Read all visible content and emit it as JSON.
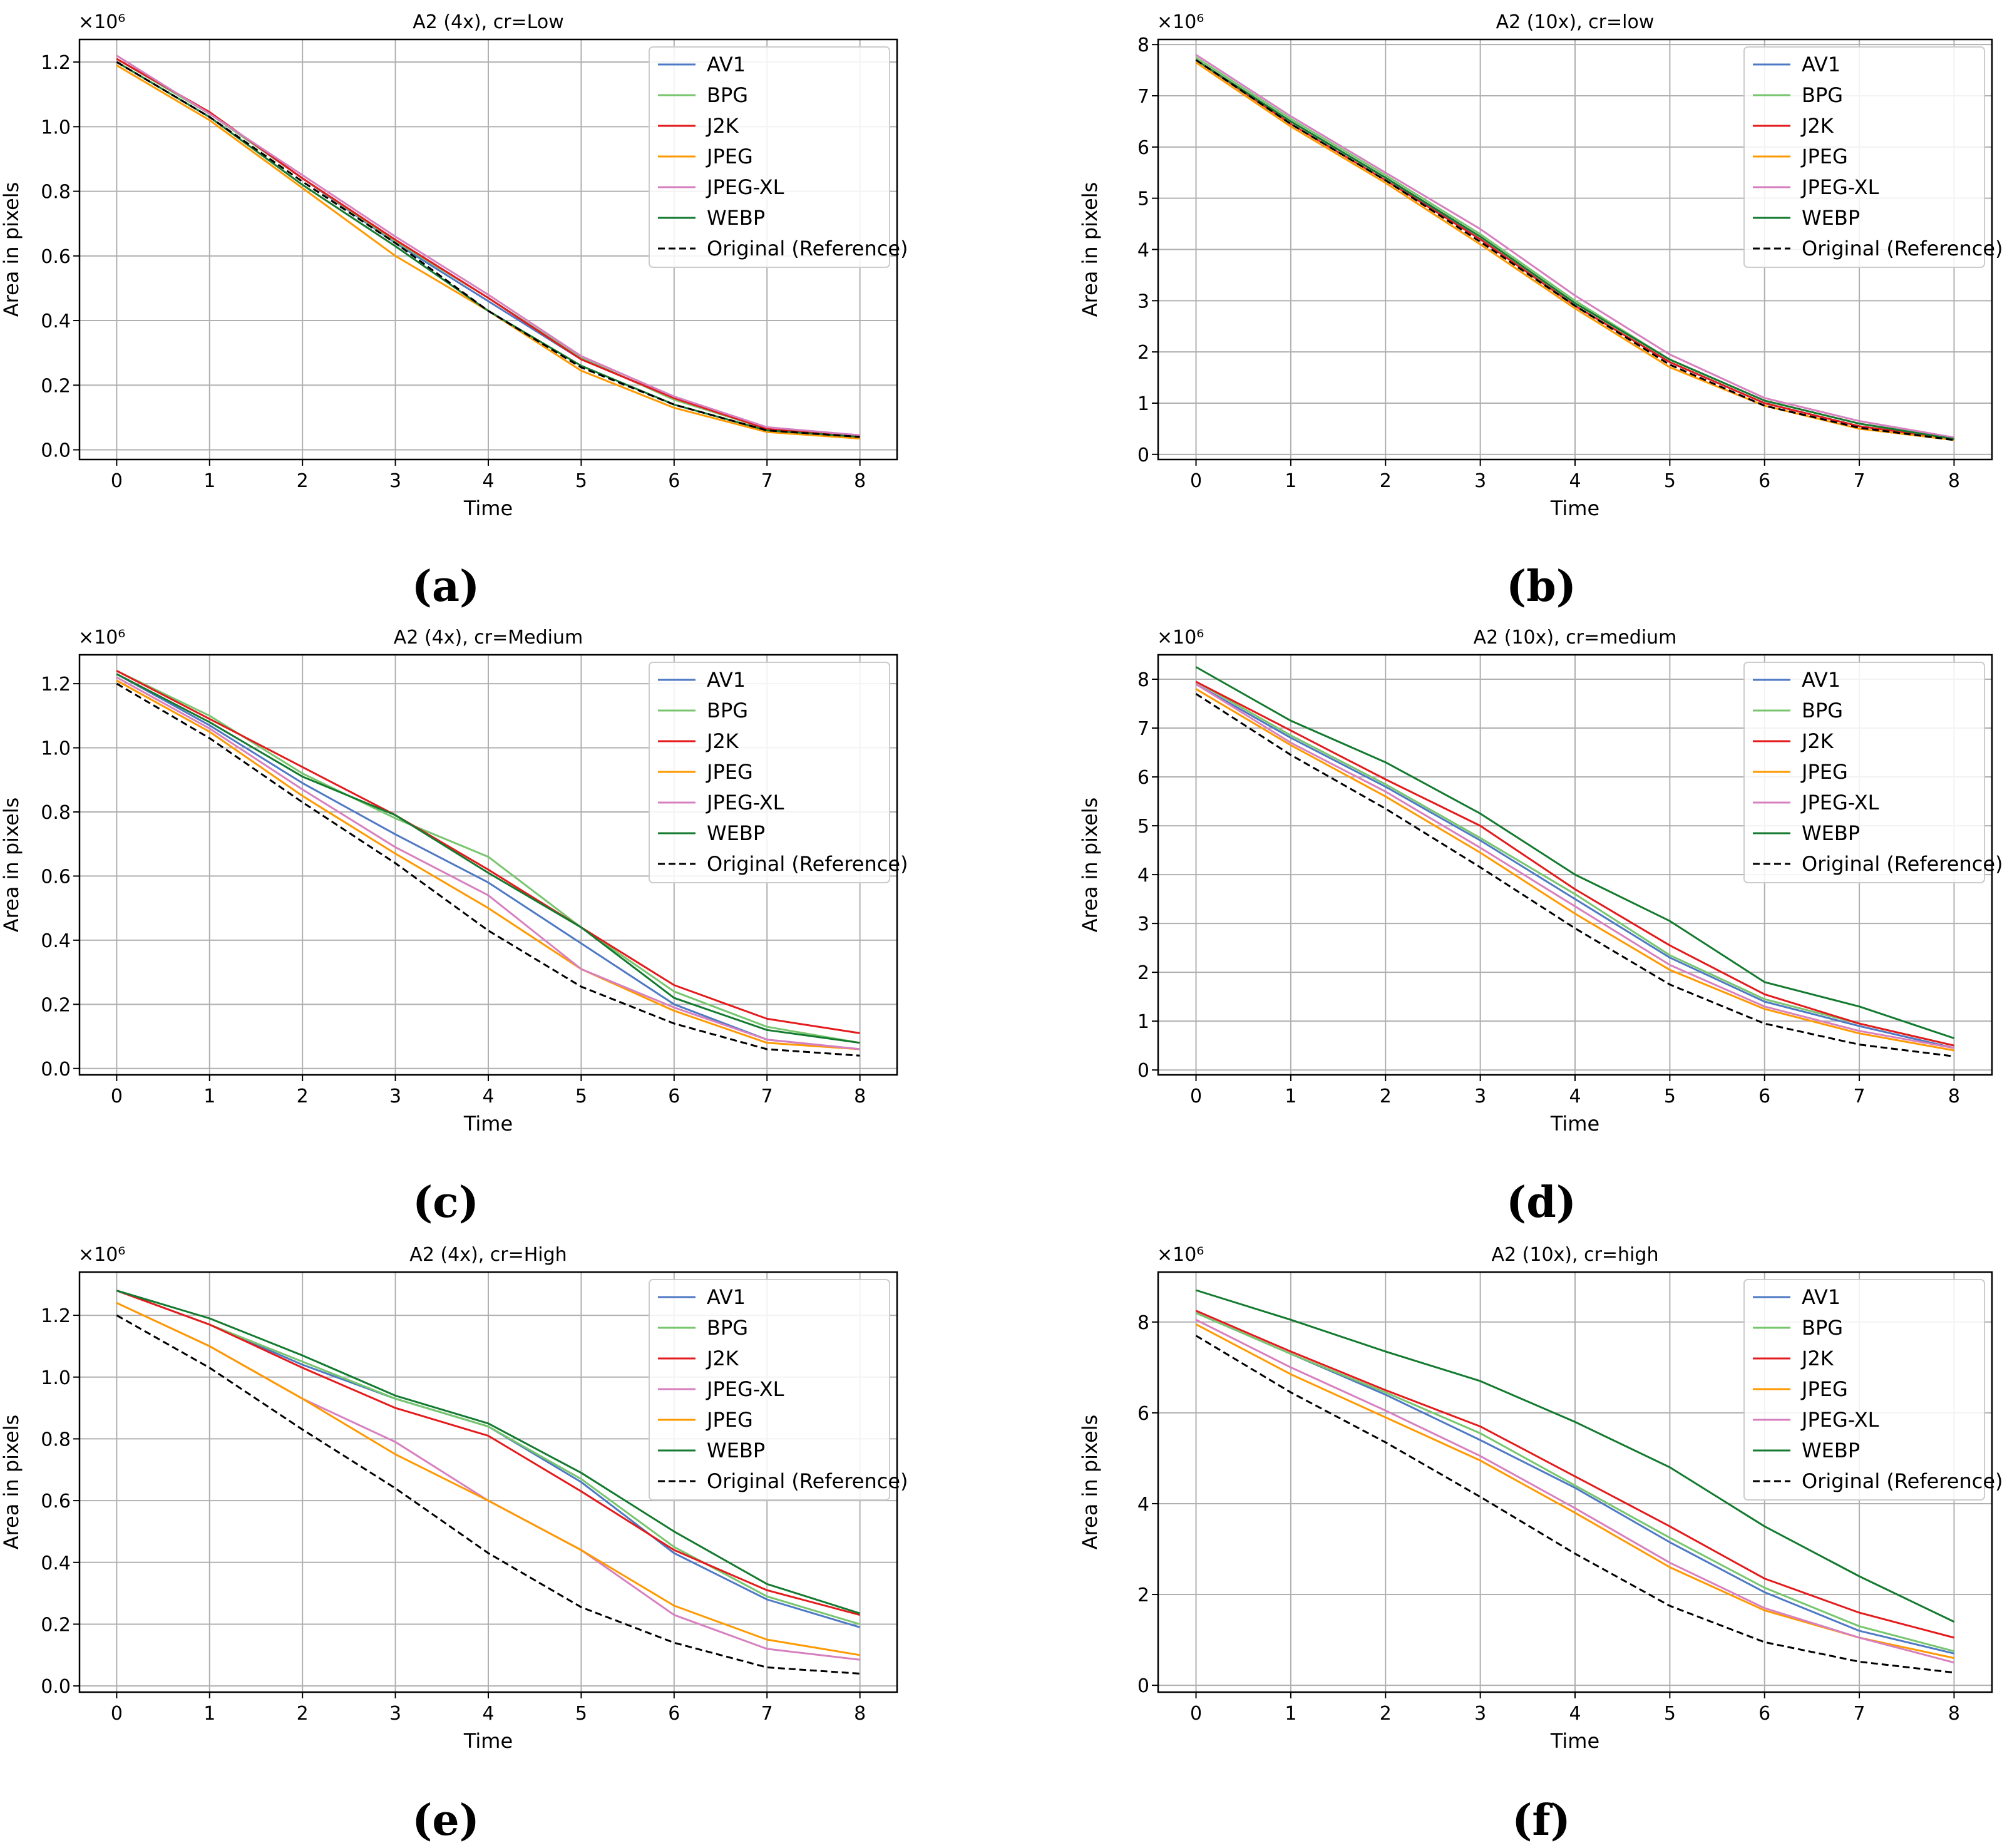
{
  "colors": {
    "AV1": "#4e79c4",
    "BPG": "#77c66e",
    "J2K": "#e41a1c",
    "JPEG": "#ff9900",
    "JPEG-XL": "#d77fbf",
    "WEBP": "#137a2f",
    "Original (Reference)": "#000000"
  },
  "chart_data": [
    {
      "type": "line",
      "caption": "(a)",
      "title": "A2 (4x), cr=Low",
      "xlabel": "Time",
      "ylabel": "Area in pixels",
      "multiplier": "×10⁶",
      "x": [
        0,
        1,
        2,
        3,
        4,
        5,
        6,
        7,
        8
      ],
      "xlim": [
        -0.4,
        8.4
      ],
      "ylim": [
        -0.03,
        1.27
      ],
      "yticks": [
        0.0,
        0.2,
        0.4,
        0.6,
        0.8,
        1.0,
        1.2
      ],
      "ytick_labels": [
        "0.0",
        "0.2",
        "0.4",
        "0.6",
        "0.8",
        "1.0",
        "1.2"
      ],
      "legend": [
        "AV1",
        "BPG",
        "J2K",
        "JPEG",
        "JPEG-XL",
        "WEBP",
        "Original (Reference)"
      ],
      "series": [
        {
          "name": "AV1",
          "values": [
            1.21,
            1.04,
            0.84,
            0.64,
            0.46,
            0.28,
            0.16,
            0.065,
            0.045
          ]
        },
        {
          "name": "BPG",
          "values": [
            1.21,
            1.04,
            0.84,
            0.645,
            0.47,
            0.285,
            0.155,
            0.065,
            0.045
          ]
        },
        {
          "name": "J2K",
          "values": [
            1.21,
            1.045,
            0.84,
            0.65,
            0.47,
            0.28,
            0.16,
            0.065,
            0.045
          ]
        },
        {
          "name": "JPEG",
          "values": [
            1.19,
            1.02,
            0.81,
            0.6,
            0.43,
            0.245,
            0.13,
            0.055,
            0.035
          ]
        },
        {
          "name": "JPEG-XL",
          "values": [
            1.22,
            1.04,
            0.85,
            0.66,
            0.48,
            0.29,
            0.165,
            0.07,
            0.045
          ]
        },
        {
          "name": "WEBP",
          "values": [
            1.2,
            1.03,
            0.82,
            0.63,
            0.43,
            0.26,
            0.14,
            0.06,
            0.04
          ]
        },
        {
          "name": "Original (Reference)",
          "values": [
            1.2,
            1.03,
            0.83,
            0.64,
            0.43,
            0.255,
            0.14,
            0.06,
            0.04
          ]
        }
      ]
    },
    {
      "type": "line",
      "caption": "(b)",
      "title": "A2 (10x), cr=low",
      "xlabel": "Time",
      "ylabel": "Area in pixels",
      "multiplier": "×10⁶",
      "x": [
        0,
        1,
        2,
        3,
        4,
        5,
        6,
        7,
        8
      ],
      "xlim": [
        -0.4,
        8.4
      ],
      "ylim": [
        -0.1,
        8.1
      ],
      "yticks": [
        0,
        1,
        2,
        3,
        4,
        5,
        6,
        7,
        8
      ],
      "ytick_labels": [
        "0",
        "1",
        "2",
        "3",
        "4",
        "5",
        "6",
        "7",
        "8"
      ],
      "legend": [
        "AV1",
        "BPG",
        "J2K",
        "JPEG",
        "JPEG-XL",
        "WEBP",
        "Original (Reference)"
      ],
      "series": [
        {
          "name": "AV1",
          "values": [
            7.7,
            6.5,
            5.4,
            4.2,
            2.9,
            1.8,
            1.0,
            0.55,
            0.3
          ]
        },
        {
          "name": "BPG",
          "values": [
            7.75,
            6.55,
            5.45,
            4.3,
            3.0,
            1.85,
            1.05,
            0.6,
            0.32
          ]
        },
        {
          "name": "J2K",
          "values": [
            7.7,
            6.45,
            5.35,
            4.2,
            2.9,
            1.8,
            1.0,
            0.55,
            0.3
          ]
        },
        {
          "name": "JPEG",
          "values": [
            7.65,
            6.4,
            5.3,
            4.1,
            2.85,
            1.7,
            0.95,
            0.5,
            0.28
          ]
        },
        {
          "name": "JPEG-XL",
          "values": [
            7.8,
            6.6,
            5.5,
            4.4,
            3.1,
            1.95,
            1.1,
            0.65,
            0.33
          ]
        },
        {
          "name": "WEBP",
          "values": [
            7.7,
            6.5,
            5.4,
            4.25,
            2.95,
            1.85,
            1.05,
            0.6,
            0.3
          ]
        },
        {
          "name": "Original (Reference)",
          "values": [
            7.7,
            6.45,
            5.35,
            4.15,
            2.9,
            1.75,
            0.95,
            0.52,
            0.28
          ]
        }
      ]
    },
    {
      "type": "line",
      "caption": "(c)",
      "title": "A2 (4x), cr=Medium",
      "xlabel": "Time",
      "ylabel": "Area in pixels",
      "multiplier": "×10⁶",
      "x": [
        0,
        1,
        2,
        3,
        4,
        5,
        6,
        7,
        8
      ],
      "xlim": [
        -0.4,
        8.4
      ],
      "ylim": [
        -0.02,
        1.29
      ],
      "yticks": [
        0.0,
        0.2,
        0.4,
        0.6,
        0.8,
        1.0,
        1.2
      ],
      "ytick_labels": [
        "0.0",
        "0.2",
        "0.4",
        "0.6",
        "0.8",
        "1.0",
        "1.2"
      ],
      "legend": [
        "AV1",
        "BPG",
        "J2K",
        "JPEG",
        "JPEG-XL",
        "WEBP",
        "Original (Reference)"
      ],
      "series": [
        {
          "name": "AV1",
          "values": [
            1.23,
            1.07,
            0.89,
            0.73,
            0.58,
            0.39,
            0.2,
            0.09,
            0.06
          ]
        },
        {
          "name": "BPG",
          "values": [
            1.24,
            1.1,
            0.92,
            0.78,
            0.66,
            0.44,
            0.24,
            0.13,
            0.08
          ]
        },
        {
          "name": "J2K",
          "values": [
            1.24,
            1.09,
            0.94,
            0.79,
            0.62,
            0.44,
            0.26,
            0.155,
            0.11
          ]
        },
        {
          "name": "JPEG",
          "values": [
            1.21,
            1.05,
            0.85,
            0.67,
            0.5,
            0.31,
            0.18,
            0.08,
            0.06
          ]
        },
        {
          "name": "JPEG-XL",
          "values": [
            1.22,
            1.06,
            0.87,
            0.69,
            0.54,
            0.31,
            0.19,
            0.09,
            0.06
          ]
        },
        {
          "name": "WEBP",
          "values": [
            1.23,
            1.08,
            0.91,
            0.79,
            0.61,
            0.44,
            0.22,
            0.12,
            0.08
          ]
        },
        {
          "name": "Original (Reference)",
          "values": [
            1.2,
            1.03,
            0.83,
            0.64,
            0.43,
            0.255,
            0.14,
            0.06,
            0.04
          ]
        }
      ]
    },
    {
      "type": "line",
      "caption": "(d)",
      "title": "A2 (10x), cr=medium",
      "xlabel": "Time",
      "ylabel": "Area in pixels",
      "multiplier": "×10⁶",
      "x": [
        0,
        1,
        2,
        3,
        4,
        5,
        6,
        7,
        8
      ],
      "xlim": [
        -0.4,
        8.4
      ],
      "ylim": [
        -0.1,
        8.5
      ],
      "yticks": [
        0,
        1,
        2,
        3,
        4,
        5,
        6,
        7,
        8
      ],
      "ytick_labels": [
        "0",
        "1",
        "2",
        "3",
        "4",
        "5",
        "6",
        "7",
        "8"
      ],
      "legend": [
        "AV1",
        "BPG",
        "J2K",
        "JPEG",
        "JPEG-XL",
        "WEBP",
        "Original (Reference)"
      ],
      "series": [
        {
          "name": "AV1",
          "values": [
            7.9,
            6.8,
            5.8,
            4.7,
            3.5,
            2.3,
            1.4,
            0.9,
            0.45
          ]
        },
        {
          "name": "BPG",
          "values": [
            7.95,
            6.85,
            5.85,
            4.75,
            3.6,
            2.35,
            1.45,
            0.95,
            0.5
          ]
        },
        {
          "name": "J2K",
          "values": [
            7.95,
            6.95,
            5.95,
            5.0,
            3.7,
            2.55,
            1.55,
            0.95,
            0.5
          ]
        },
        {
          "name": "JPEG",
          "values": [
            7.8,
            6.65,
            5.6,
            4.45,
            3.2,
            2.05,
            1.25,
            0.75,
            0.4
          ]
        },
        {
          "name": "JPEG-XL",
          "values": [
            7.9,
            6.7,
            5.7,
            4.55,
            3.35,
            2.15,
            1.3,
            0.8,
            0.45
          ]
        },
        {
          "name": "WEBP",
          "values": [
            8.25,
            7.15,
            6.3,
            5.25,
            4.0,
            3.05,
            1.8,
            1.3,
            0.65
          ]
        },
        {
          "name": "Original (Reference)",
          "values": [
            7.7,
            6.45,
            5.35,
            4.15,
            2.9,
            1.75,
            0.95,
            0.52,
            0.28
          ]
        }
      ]
    },
    {
      "type": "line",
      "caption": "(e)",
      "title": "A2 (4x), cr=High",
      "xlabel": "Time",
      "ylabel": "Area in pixels",
      "multiplier": "×10⁶",
      "x": [
        0,
        1,
        2,
        3,
        4,
        5,
        6,
        7,
        8
      ],
      "xlim": [
        -0.4,
        8.4
      ],
      "ylim": [
        -0.02,
        1.34
      ],
      "yticks": [
        0.0,
        0.2,
        0.4,
        0.6,
        0.8,
        1.0,
        1.2
      ],
      "ytick_labels": [
        "0.0",
        "0.2",
        "0.4",
        "0.6",
        "0.8",
        "1.0",
        "1.2"
      ],
      "legend": [
        "AV1",
        "BPG",
        "J2K",
        "JPEG-XL",
        "JPEG",
        "WEBP",
        "Original (Reference)"
      ],
      "series": [
        {
          "name": "AV1",
          "values": [
            1.28,
            1.17,
            1.04,
            0.93,
            0.84,
            0.66,
            0.43,
            0.28,
            0.19
          ]
        },
        {
          "name": "BPG",
          "values": [
            1.28,
            1.17,
            1.05,
            0.93,
            0.84,
            0.67,
            0.45,
            0.29,
            0.2
          ]
        },
        {
          "name": "J2K",
          "values": [
            1.28,
            1.17,
            1.03,
            0.9,
            0.81,
            0.63,
            0.44,
            0.31,
            0.23
          ]
        },
        {
          "name": "JPEG-XL",
          "values": [
            1.24,
            1.1,
            0.93,
            0.79,
            0.6,
            0.44,
            0.23,
            0.12,
            0.085
          ]
        },
        {
          "name": "JPEG",
          "values": [
            1.24,
            1.1,
            0.93,
            0.75,
            0.6,
            0.44,
            0.26,
            0.15,
            0.1
          ]
        },
        {
          "name": "WEBP",
          "values": [
            1.28,
            1.19,
            1.07,
            0.94,
            0.85,
            0.69,
            0.5,
            0.33,
            0.235
          ]
        },
        {
          "name": "Original (Reference)",
          "values": [
            1.2,
            1.03,
            0.83,
            0.64,
            0.43,
            0.255,
            0.14,
            0.06,
            0.04
          ]
        }
      ]
    },
    {
      "type": "line",
      "caption": "(f)",
      "title": "A2 (10x), cr=high",
      "xlabel": "Time",
      "ylabel": "Area in pixels",
      "multiplier": "×10⁶",
      "x": [
        0,
        1,
        2,
        3,
        4,
        5,
        6,
        7,
        8
      ],
      "xlim": [
        -0.4,
        8.4
      ],
      "ylim": [
        -0.15,
        9.1
      ],
      "yticks": [
        0,
        2,
        4,
        6,
        8
      ],
      "ytick_labels": [
        "0",
        "2",
        "4",
        "6",
        "8"
      ],
      "legend": [
        "AV1",
        "BPG",
        "J2K",
        "JPEG",
        "JPEG-XL",
        "WEBP",
        "Original (Reference)"
      ],
      "series": [
        {
          "name": "AV1",
          "values": [
            8.2,
            7.3,
            6.4,
            5.4,
            4.35,
            3.15,
            2.05,
            1.2,
            0.7
          ]
        },
        {
          "name": "BPG",
          "values": [
            8.2,
            7.3,
            6.45,
            5.55,
            4.4,
            3.25,
            2.15,
            1.3,
            0.75
          ]
        },
        {
          "name": "J2K",
          "values": [
            8.25,
            7.35,
            6.5,
            5.7,
            4.6,
            3.5,
            2.35,
            1.6,
            1.05
          ]
        },
        {
          "name": "JPEG",
          "values": [
            7.95,
            6.85,
            5.9,
            4.95,
            3.8,
            2.6,
            1.65,
            1.05,
            0.6
          ]
        },
        {
          "name": "JPEG-XL",
          "values": [
            8.05,
            7.0,
            6.05,
            5.05,
            3.9,
            2.7,
            1.7,
            1.05,
            0.5
          ]
        },
        {
          "name": "WEBP",
          "values": [
            8.7,
            8.05,
            7.35,
            6.7,
            5.8,
            4.8,
            3.5,
            2.4,
            1.4
          ]
        },
        {
          "name": "Original (Reference)",
          "values": [
            7.7,
            6.45,
            5.35,
            4.15,
            2.9,
            1.75,
            0.95,
            0.52,
            0.28
          ]
        }
      ]
    }
  ]
}
